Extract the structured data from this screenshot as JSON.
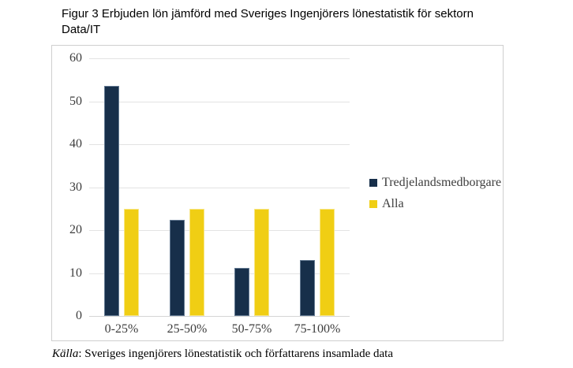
{
  "page": {
    "title_line1": "Figur 3 Erbjuden lön jämförd med Sveriges Ingenjörers lönestatistik för sektorn",
    "title_line2": "Data/IT",
    "source_prefix": "Källa",
    "source_rest": ": Sveriges ingenjörers lönestatistik och författarens insamlade data"
  },
  "chart_data": {
    "type": "bar",
    "title": "Figur 3 Erbjuden lön jämförd med Sveriges Ingenjörers lönestatistik för sektorn Data/IT",
    "categories": [
      "0-25%",
      "25-50%",
      "50-75%",
      "75-100%"
    ],
    "series": [
      {
        "name": "Tredjelandsmedborgare",
        "color": "#172F4A",
        "values": [
          53.6,
          22.4,
          11.2,
          13.0
        ]
      },
      {
        "name": "Alla",
        "color": "#F0CE14",
        "values": [
          25,
          25,
          25,
          25
        ]
      }
    ],
    "xlabel": "",
    "ylabel": "",
    "ylim": [
      0,
      60
    ],
    "yticks": [
      0,
      10,
      20,
      30,
      40,
      50,
      60
    ],
    "grid": true,
    "legend_position": "right",
    "colors": {
      "gridline": "#E3E3E3",
      "axis_line": "#D6D6D6",
      "frame_border": "#CFCFCF",
      "label": "#3D3D3D"
    }
  }
}
